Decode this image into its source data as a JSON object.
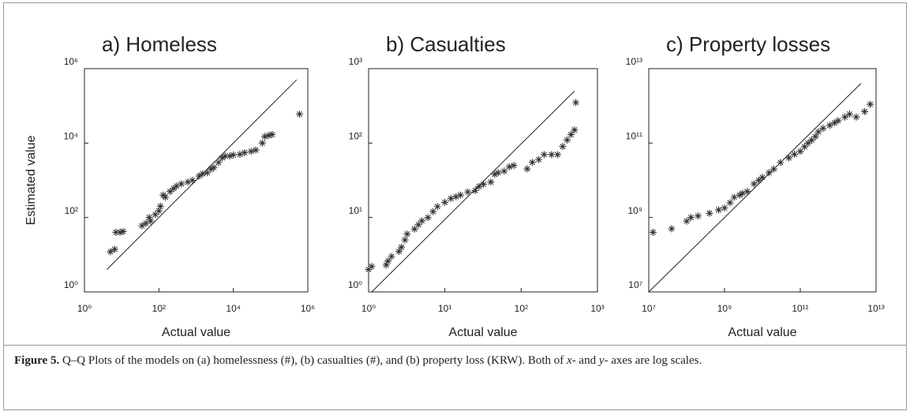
{
  "chart_data": [
    {
      "type": "scatter",
      "title": "a) Homeless",
      "xlabel": "Actual value",
      "ylabel": "Estimated value",
      "xscale": "log",
      "yscale": "log",
      "color": "#333333",
      "xlim": [
        1,
        1000000
      ],
      "ylim": [
        1,
        1000000
      ],
      "xticks": [
        {
          "value": 1,
          "label": "10⁰"
        },
        {
          "value": 100,
          "label": "10²"
        },
        {
          "value": 10000,
          "label": "10⁴"
        },
        {
          "value": 1000000,
          "label": "10⁶"
        }
      ],
      "yticks": [
        {
          "value": 1,
          "label": "10⁰"
        },
        {
          "value": 100,
          "label": "10²"
        },
        {
          "value": 10000,
          "label": "10⁴"
        },
        {
          "value": 1000000,
          "label": "10⁶"
        }
      ],
      "reference_line": {
        "x": [
          4,
          500000
        ],
        "y": [
          4,
          500000
        ]
      },
      "x": [
        5,
        6.5,
        7,
        9,
        11,
        35,
        45,
        55,
        60,
        80,
        100,
        110,
        130,
        150,
        200,
        250,
        300,
        400,
        600,
        800,
        1200,
        1500,
        2000,
        2500,
        3000,
        4000,
        5000,
        6000,
        8000,
        10000,
        15000,
        20000,
        30000,
        40000,
        60000,
        70000,
        90000,
        110000,
        600000
      ],
      "values": [
        12,
        14,
        40,
        40,
        42,
        60,
        70,
        100,
        80,
        120,
        150,
        200,
        400,
        350,
        500,
        600,
        700,
        800,
        900,
        1000,
        1300,
        1500,
        1600,
        2000,
        2200,
        3000,
        4000,
        4500,
        4500,
        4800,
        5000,
        5500,
        6000,
        6500,
        10000,
        15000,
        16000,
        17000,
        60000
      ]
    },
    {
      "type": "scatter",
      "title": "b) Casualties",
      "xlabel": "Actual value",
      "xscale": "log",
      "yscale": "log",
      "color": "#333333",
      "xlim": [
        1,
        1000
      ],
      "ylim": [
        1,
        1000
      ],
      "xticks": [
        {
          "value": 1,
          "label": "10⁰"
        },
        {
          "value": 10,
          "label": "10¹"
        },
        {
          "value": 100,
          "label": "10²"
        },
        {
          "value": 1000,
          "label": "10³"
        }
      ],
      "yticks": [
        {
          "value": 1,
          "label": "10⁰"
        },
        {
          "value": 10,
          "label": "10¹"
        },
        {
          "value": 100,
          "label": "10²"
        },
        {
          "value": 1000,
          "label": "10³"
        }
      ],
      "reference_line": {
        "x": [
          1.1,
          500
        ],
        "y": [
          1,
          500
        ]
      },
      "x": [
        1,
        1.1,
        1.7,
        1.8,
        2,
        2.5,
        2.7,
        3,
        3.2,
        4,
        4.5,
        5,
        6,
        7,
        8,
        10,
        12,
        14,
        16,
        20,
        25,
        28,
        32,
        40,
        45,
        50,
        60,
        70,
        80,
        120,
        140,
        170,
        200,
        250,
        300,
        350,
        400,
        450,
        500,
        520
      ],
      "values": [
        2,
        2.2,
        2.3,
        2.6,
        3,
        3.5,
        4,
        5,
        6,
        7,
        8,
        9,
        10,
        12,
        14,
        16,
        18,
        19,
        20,
        22,
        23,
        26,
        28,
        30,
        38,
        40,
        42,
        48,
        50,
        45,
        55,
        60,
        70,
        70,
        70,
        90,
        110,
        130,
        150,
        350
      ]
    },
    {
      "type": "scatter",
      "title": "c) Property losses",
      "xlabel": "Actual value",
      "xscale": "log",
      "yscale": "log",
      "color": "#333333",
      "xlim": [
        10000000,
        10000000000000
      ],
      "ylim": [
        10000000,
        10000000000000
      ],
      "xticks": [
        {
          "value": 10000000,
          "label": "10⁷"
        },
        {
          "value": 1000000000,
          "label": "10⁹"
        },
        {
          "value": 100000000000,
          "label": "10¹¹"
        },
        {
          "value": 10000000000000,
          "label": "10¹³"
        }
      ],
      "yticks": [
        {
          "value": 10000000,
          "label": "10⁷"
        },
        {
          "value": 1000000000,
          "label": "10⁹"
        },
        {
          "value": 100000000000,
          "label": "10¹¹"
        },
        {
          "value": 10000000000000,
          "label": "10¹³"
        }
      ],
      "reference_line": {
        "x": [
          10000000,
          4000000000000
        ],
        "y": [
          10000000,
          4000000000000
        ]
      },
      "x": [
        13000000,
        40000000,
        100000000,
        130000000,
        200000000,
        400000000,
        700000000,
        1000000000,
        1400000000,
        1800000000,
        2500000000,
        3000000000,
        4000000000,
        6000000000,
        8000000000,
        10000000000,
        15000000000,
        20000000000,
        30000000000,
        50000000000,
        70000000000,
        100000000000,
        130000000000,
        160000000000,
        200000000000,
        250000000000,
        300000000000,
        400000000000,
        600000000000,
        800000000000,
        1000000000000,
        1500000000000,
        2000000000000,
        3000000000000,
        5000000000000,
        7000000000000
      ],
      "values": [
        400000000,
        500000000,
        800000000,
        1000000000,
        1100000000,
        1300000000,
        1600000000,
        1800000000,
        2500000000,
        3500000000,
        4000000000,
        4500000000,
        5000000000,
        8000000000,
        10000000000,
        12000000000,
        16000000000,
        20000000000,
        30000000000,
        40000000000,
        50000000000,
        60000000000,
        80000000000,
        100000000000,
        120000000000,
        150000000000,
        200000000000,
        250000000000,
        300000000000,
        350000000000,
        400000000000,
        500000000000,
        600000000000,
        500000000000,
        700000000000,
        1100000000000
      ]
    }
  ],
  "caption": {
    "label": "Figure 5.",
    "parts": [
      "Q–Q Plots of the models on (a) homelessness (#), (b) casualties (#), and (b) property loss (KRW). Both of ",
      "x",
      "- and ",
      "y",
      "- axes are log scales."
    ]
  }
}
